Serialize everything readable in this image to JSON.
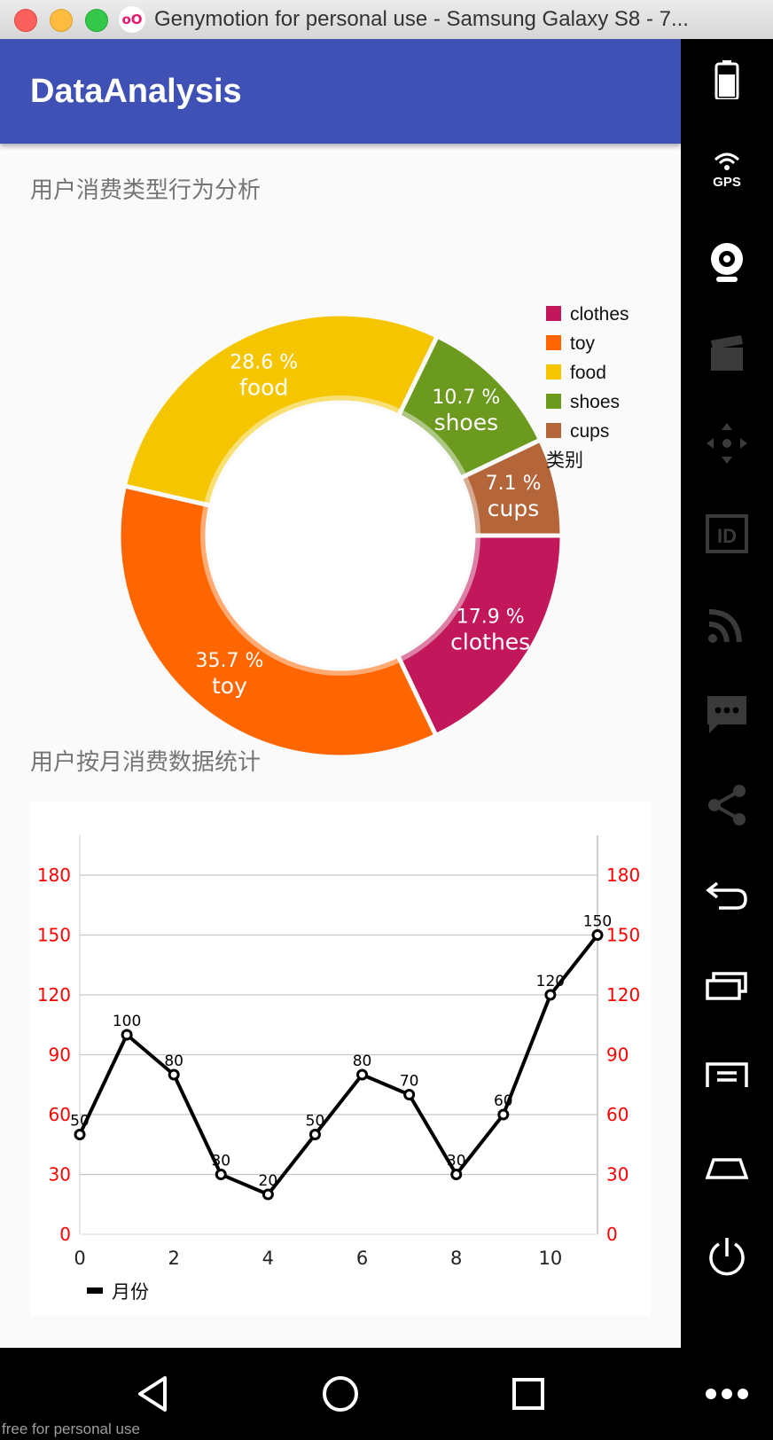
{
  "window": {
    "title": "Genymotion for personal use - Samsung Galaxy S8 - 7..."
  },
  "app": {
    "title": "DataAnalysis"
  },
  "sections": {
    "pie_title": "用户消费类型行为分析",
    "line_title": "用户按月消费数据统计"
  },
  "watermark": "free for personal use",
  "colors": {
    "appbar": "#3f51b5",
    "axis_labels": "#ff0000"
  },
  "sidebar_icons": [
    "battery-icon",
    "gps-icon",
    "webcam-icon",
    "clapperboard-icon",
    "dpad-icon",
    "id-icon",
    "rss-icon",
    "message-icon",
    "share-icon",
    "back-icon",
    "recent-apps-icon",
    "menu-icon",
    "home-icon",
    "power-icon"
  ],
  "nav_icons": [
    "back-triangle-icon",
    "home-circle-icon",
    "recents-square-icon",
    "more-icon"
  ],
  "chart_data": [
    {
      "type": "pie",
      "title": "用户消费类型行为分析",
      "legend_title": "类别",
      "legend_position": "right",
      "slices": [
        {
          "label": "clothes",
          "value": 17.9,
          "display": "17.9 %",
          "color": "#c2185b"
        },
        {
          "label": "toy",
          "value": 35.7,
          "display": "35.7 %",
          "color": "#ff6600"
        },
        {
          "label": "food",
          "value": 28.6,
          "display": "28.6 %",
          "color": "#f5c600"
        },
        {
          "label": "shoes",
          "value": 10.7,
          "display": "10.7 %",
          "color": "#6b9a1e"
        },
        {
          "label": "cups",
          "value": 7.1,
          "display": "7.1 %",
          "color": "#b5653a"
        }
      ]
    },
    {
      "type": "line",
      "title": "用户按月消费数据统计",
      "x": [
        0,
        1,
        2,
        3,
        4,
        5,
        6,
        7,
        8,
        9,
        10,
        11
      ],
      "x_ticks": [
        0,
        2,
        4,
        6,
        8,
        10
      ],
      "series": [
        {
          "name": "月份",
          "values": [
            50,
            100,
            80,
            30,
            20,
            50,
            80,
            70,
            30,
            60,
            120,
            150
          ]
        }
      ],
      "y_ticks": [
        0,
        30,
        60,
        90,
        120,
        150,
        180
      ],
      "ylim": [
        0,
        200
      ],
      "xlim": [
        0,
        11
      ],
      "grid": true,
      "legend_position": "bottom-left"
    }
  ]
}
